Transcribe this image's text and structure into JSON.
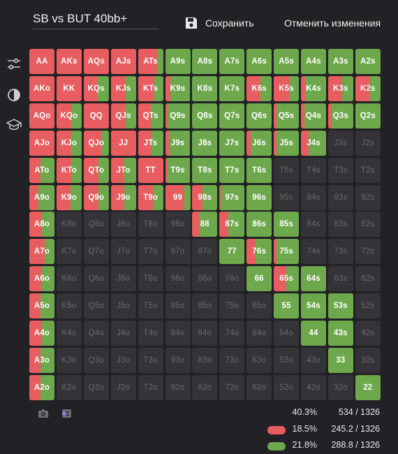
{
  "header": {
    "title": "SB vs BUT 40bb+",
    "save_label": "Сохранить",
    "cancel_label": "Отменить изменения"
  },
  "sidebar": {
    "icons": [
      "sliders-icon",
      "contrast-icon",
      "graduation-cap-icon"
    ]
  },
  "colors": {
    "red": "#e85d5f",
    "green": "#6ea84c",
    "empty": "#333338",
    "empty_text": "#6a6a70"
  },
  "grid": {
    "rows": [
      [
        "AA",
        "AKs",
        "AQs",
        "AJs",
        "ATs",
        "A9s",
        "A8s",
        "A7s",
        "A6s",
        "A5s",
        "A4s",
        "A3s",
        "A2s"
      ],
      [
        "AKo",
        "KK",
        "KQs",
        "KJs",
        "KTs",
        "K9s",
        "K8s",
        "K7s",
        "K6s",
        "K5s",
        "K4s",
        "K3s",
        "K2s"
      ],
      [
        "AQo",
        "KQo",
        "QQ",
        "QJs",
        "QTs",
        "Q9s",
        "Q8s",
        "Q7s",
        "Q6s",
        "Q5s",
        "Q4s",
        "Q3s",
        "Q2s"
      ],
      [
        "AJo",
        "KJo",
        "QJo",
        "JJ",
        "JTs",
        "J9s",
        "J8s",
        "J7s",
        "J6s",
        "J5s",
        "J4s",
        "J3s",
        "J2s"
      ],
      [
        "ATo",
        "KTo",
        "QTo",
        "JTo",
        "TT",
        "T9s",
        "T8s",
        "T7s",
        "T6s",
        "T5s",
        "T4s",
        "T3s",
        "T2s"
      ],
      [
        "A9o",
        "K9o",
        "Q9o",
        "J9o",
        "T9o",
        "99",
        "98s",
        "97s",
        "96s",
        "95s",
        "94s",
        "93s",
        "92s"
      ],
      [
        "A8o",
        "K8o",
        "Q8o",
        "J8o",
        "T8o",
        "98o",
        "88",
        "87s",
        "86s",
        "85s",
        "84s",
        "83s",
        "82s"
      ],
      [
        "A7o",
        "K7o",
        "Q7o",
        "J7o",
        "T7o",
        "97o",
        "87o",
        "77",
        "76s",
        "75s",
        "74s",
        "73s",
        "72s"
      ],
      [
        "A6o",
        "K6o",
        "Q6o",
        "J6o",
        "T6o",
        "96o",
        "86o",
        "76o",
        "66",
        "65s",
        "64s",
        "63s",
        "62s"
      ],
      [
        "A5o",
        "K5o",
        "Q5o",
        "J5o",
        "T5o",
        "95o",
        "85o",
        "75o",
        "65o",
        "55",
        "54s",
        "53s",
        "52s"
      ],
      [
        "A4o",
        "K4o",
        "Q4o",
        "J4o",
        "T4o",
        "94o",
        "84o",
        "74o",
        "64o",
        "54o",
        "44",
        "43s",
        "42s"
      ],
      [
        "A3o",
        "K3o",
        "Q3o",
        "J3o",
        "T3o",
        "93o",
        "83o",
        "73o",
        "63o",
        "53o",
        "43o",
        "33",
        "32s"
      ],
      [
        "A2o",
        "K2o",
        "Q2o",
        "J2o",
        "T2o",
        "92o",
        "82o",
        "72o",
        "62o",
        "52o",
        "42o",
        "32o",
        "22"
      ]
    ],
    "red_fraction": [
      [
        1,
        1,
        1,
        1,
        0.75,
        0,
        0,
        0,
        0,
        0,
        0,
        0,
        0
      ],
      [
        1,
        1,
        0.55,
        0.6,
        0.65,
        0.2,
        0,
        0,
        0.55,
        0.6,
        0.2,
        0.55,
        0.6
      ],
      [
        1,
        0.6,
        1,
        0.6,
        0.5,
        0.1,
        0,
        0,
        0,
        0.1,
        0.15,
        0.15,
        0
      ],
      [
        1,
        0.6,
        0.7,
        1,
        0.55,
        0.15,
        0,
        0,
        0.15,
        0.1,
        0.3,
        0,
        0
      ],
      [
        0.45,
        0.6,
        0.6,
        0.55,
        1,
        0.1,
        0,
        0,
        0,
        0,
        0,
        0,
        0
      ],
      [
        0.35,
        0.55,
        0.6,
        0.55,
        0.6,
        0.75,
        0.4,
        0.05,
        0,
        0,
        0,
        0,
        0
      ],
      [
        0.5,
        0,
        0,
        0,
        0,
        0,
        0.3,
        0.35,
        0,
        0,
        0,
        0,
        0
      ],
      [
        0.6,
        0,
        0,
        0,
        0,
        0,
        0,
        0,
        0.35,
        0.1,
        0,
        0,
        0
      ],
      [
        0.5,
        0,
        0,
        0,
        0,
        0,
        0,
        0,
        0,
        0.5,
        0,
        0,
        0
      ],
      [
        0.45,
        0,
        0,
        0,
        0,
        0,
        0,
        0,
        0,
        0,
        0,
        0,
        0
      ],
      [
        0.5,
        0,
        0,
        0,
        0,
        0,
        0,
        0,
        0,
        0,
        0,
        0,
        0
      ],
      [
        0.45,
        0,
        0,
        0,
        0,
        0,
        0,
        0,
        0,
        0,
        0,
        0,
        0
      ],
      [
        0.45,
        0,
        0,
        0,
        0,
        0,
        0,
        0,
        0,
        0,
        0,
        0,
        0
      ]
    ],
    "green_fraction": [
      [
        0,
        0,
        0,
        0,
        0.25,
        1,
        1,
        1,
        1,
        1,
        1,
        1,
        1
      ],
      [
        0,
        0,
        0.45,
        0.4,
        0.35,
        0.8,
        1,
        1,
        0.45,
        0.4,
        0.8,
        0.45,
        0.4
      ],
      [
        0,
        0.4,
        0,
        0.4,
        0.5,
        0.9,
        1,
        1,
        1,
        0.9,
        0.85,
        0.85,
        1
      ],
      [
        0,
        0.4,
        0.3,
        0,
        0.45,
        0.85,
        1,
        1,
        0.85,
        0.9,
        0.7,
        0,
        0
      ],
      [
        0.55,
        0.4,
        0.4,
        0.45,
        0,
        0.9,
        1,
        1,
        1,
        0,
        0,
        0,
        0
      ],
      [
        0.65,
        0.45,
        0.4,
        0.45,
        0.4,
        0.25,
        0.6,
        0.95,
        1,
        0,
        0,
        0,
        0
      ],
      [
        0.5,
        0,
        0,
        0,
        0,
        0,
        0.7,
        0.65,
        1,
        1,
        0,
        0,
        0
      ],
      [
        0.4,
        0,
        0,
        0,
        0,
        0,
        0,
        1,
        0.65,
        0.9,
        0,
        0,
        0
      ],
      [
        0.5,
        0,
        0,
        0,
        0,
        0,
        0,
        0,
        1,
        0.5,
        1,
        0,
        0
      ],
      [
        0.55,
        0,
        0,
        0,
        0,
        0,
        0,
        0,
        0,
        1,
        1,
        1,
        0
      ],
      [
        0.5,
        0,
        0,
        0,
        0,
        0,
        0,
        0,
        0,
        0,
        1,
        1,
        0
      ],
      [
        0.55,
        0,
        0,
        0,
        0,
        0,
        0,
        0,
        0,
        0,
        0,
        1,
        0
      ],
      [
        0.55,
        0,
        0,
        0,
        0,
        0,
        0,
        0,
        0,
        0,
        0,
        0,
        1
      ]
    ]
  },
  "stats": {
    "total_pct": "40.3%",
    "total_count": "534 / 1326",
    "red_pct": "18.5%",
    "red_count": "245.2 / 1326",
    "green_pct": "21.8%",
    "green_count": "288.8 / 1326"
  }
}
